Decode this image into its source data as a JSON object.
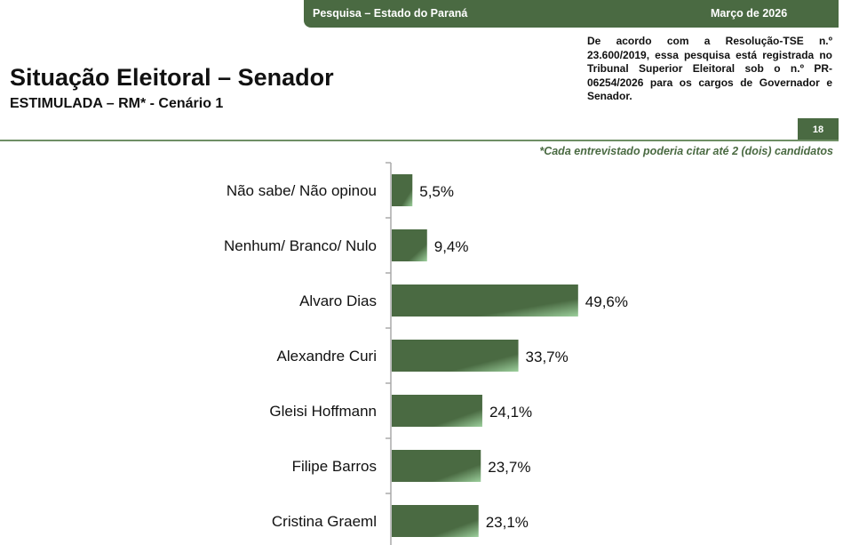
{
  "header": {
    "left": "Pesquisa – Estado do Paraná",
    "right": "Março de 2026"
  },
  "title": "Situação Eleitoral – Senador",
  "subtitle": "ESTIMULADA – RM* - Cenário 1",
  "legal_note": "De acordo com a Resolução-TSE n.º 23.600/2019, essa pesquisa está registrada no Tribunal Superior Eleitoral sob o n.º PR-06254/2026 para os cargos de Governador e Senador.",
  "page_number": "18",
  "footnote": "*Cada entrevistado poderia citar até 2 (dois) candidatos",
  "colors": {
    "primary": "#4a6a42",
    "light": "#9ccf9c"
  },
  "chart_data": {
    "type": "bar",
    "orientation": "horizontal",
    "categories": [
      "Não sabe/ Não opinou",
      "Nenhum/ Branco/ Nulo",
      "Alvaro Dias",
      "Alexandre Curi",
      "Gleisi Hoffmann",
      "Filipe Barros",
      "Cristina Graeml"
    ],
    "values": [
      5.5,
      9.4,
      49.6,
      33.7,
      24.1,
      23.7,
      23.1
    ],
    "labels": [
      "5,5%",
      "9,4%",
      "49,6%",
      "33,7%",
      "24,1%",
      "23,7%",
      "23,1%"
    ],
    "unit": "%"
  }
}
